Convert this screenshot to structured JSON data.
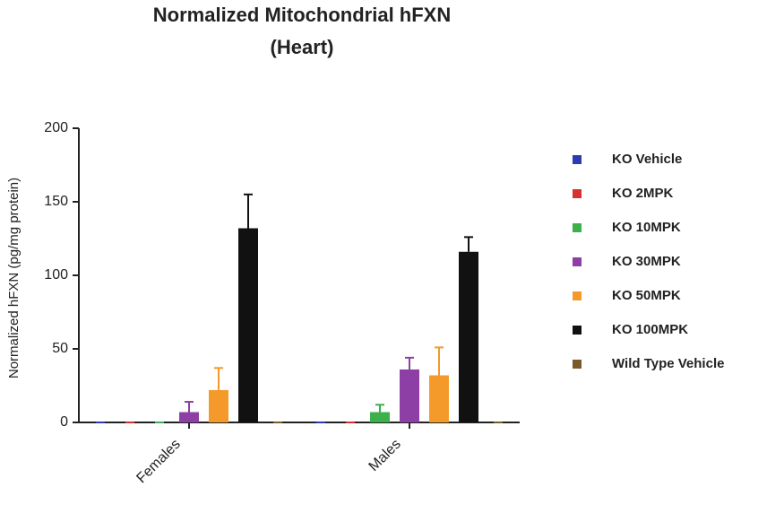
{
  "chart_data": {
    "type": "bar",
    "title": "Normalized Mitochondrial hFXN",
    "subtitle": "(Heart)",
    "y_label": "Normalized hFXN (pg/mg protein)",
    "categories": [
      "Females",
      "Males"
    ],
    "series": [
      {
        "name": "KO Vehicle",
        "color": "#2b3bb0",
        "values": [
          0,
          0
        ],
        "errors": [
          0,
          0
        ]
      },
      {
        "name": "KO 2MPK",
        "color": "#d63030",
        "values": [
          0,
          0
        ],
        "errors": [
          0,
          0
        ]
      },
      {
        "name": "KO 10MPK",
        "color": "#3cb04a",
        "values": [
          0,
          7
        ],
        "errors": [
          0,
          5
        ]
      },
      {
        "name": "KO  30MPK",
        "color": "#8e3fa5",
        "values": [
          7,
          36
        ],
        "errors": [
          7,
          8
        ]
      },
      {
        "name": "KO 50MPK",
        "color": "#f39a2b",
        "values": [
          22,
          32
        ],
        "errors": [
          15,
          19
        ]
      },
      {
        "name": "KO 100MPK",
        "color": "#111111",
        "values": [
          132,
          116
        ],
        "errors": [
          23,
          10
        ]
      },
      {
        "name": "Wild Type Vehicle",
        "color": "#7a5a2a",
        "values": [
          0,
          0
        ],
        "errors": [
          0,
          0
        ]
      }
    ],
    "ylim": [
      0,
      200
    ],
    "yticks": [
      0,
      50,
      100,
      150,
      200
    ],
    "grid": false,
    "legend": "right"
  }
}
